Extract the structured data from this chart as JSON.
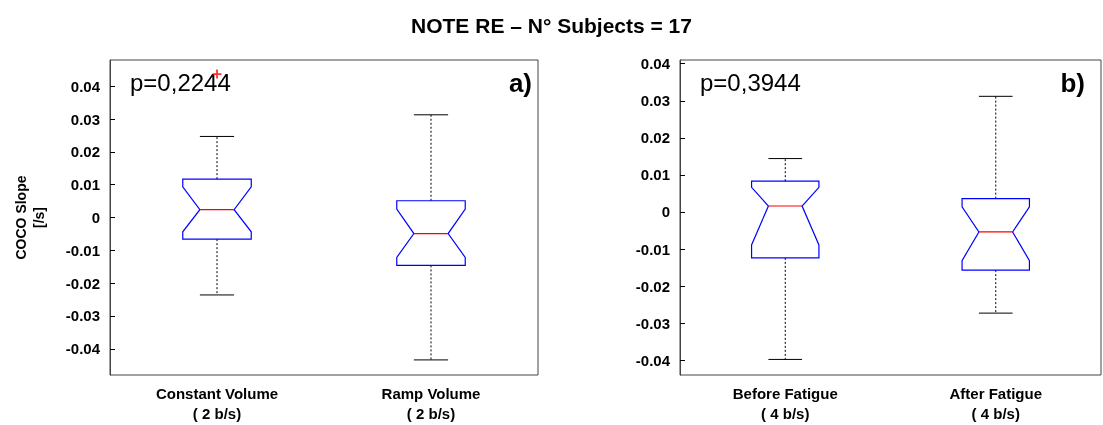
{
  "chart_data": [
    {
      "type": "box",
      "title": "NOTE RE – N° Subjects = 17",
      "ylabel": "COCO Slope\n[/s]",
      "categories": [
        "Constant Volume\n( 2 b/s)",
        "Ramp Volume\n( 2 b/s)"
      ],
      "ylim": [
        -0.048,
        0.048
      ],
      "yticks": [
        -0.04,
        -0.03,
        -0.02,
        -0.01,
        0,
        0.01,
        0.02,
        0.03,
        0.04
      ],
      "grid": false,
      "annotations": [
        "p=0,2244",
        "a)"
      ],
      "series": [
        {
          "color": "#0000ff",
          "boxes": [
            {
              "low": -0.0236,
              "q1": -0.0066,
              "median": 0.0024,
              "q3": 0.0117,
              "high": 0.0247,
              "outliers": [
                0.0437
              ]
            },
            {
              "low": -0.0434,
              "q1": -0.0146,
              "median": -0.0049,
              "q3": 0.0051,
              "high": 0.0313
            }
          ]
        }
      ]
    },
    {
      "type": "box",
      "categories": [
        "Before Fatigue\n( 4 b/s)",
        "After Fatigue\n( 4 b/s)"
      ],
      "ylim": [
        -0.044,
        0.041
      ],
      "yticks": [
        -0.04,
        -0.03,
        -0.02,
        -0.01,
        0,
        0.01,
        0.02,
        0.03,
        0.04
      ],
      "grid": false,
      "annotations": [
        "p=0,3944",
        "b)"
      ],
      "series": [
        {
          "color": "#0000ff",
          "boxes": [
            {
              "low": -0.0398,
              "q1": -0.0124,
              "median": 0.0016,
              "q3": 0.0083,
              "high": 0.0144
            },
            {
              "low": -0.0273,
              "q1": -0.0157,
              "median": -0.0054,
              "q3": 0.0036,
              "high": 0.0312
            }
          ]
        }
      ]
    }
  ]
}
